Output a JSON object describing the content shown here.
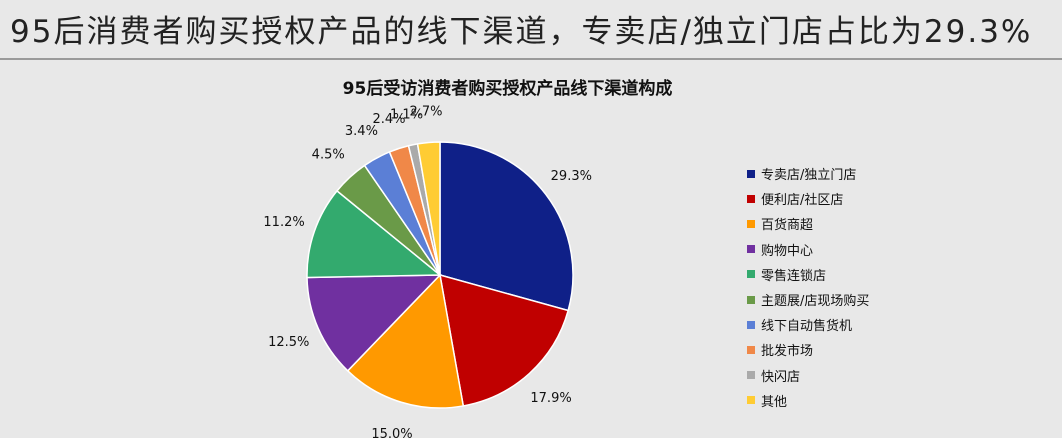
{
  "headline": "95后消费者购买授权产品的线下渠道，专卖店/独立门店占比为29.3%",
  "chart_data": {
    "type": "pie",
    "title": "95后受访消费者购买授权产品线下渠道构成",
    "legend_position": "right",
    "slices": [
      {
        "label": "专卖店/独立门店",
        "value": 29.3,
        "value_label": "29.3%",
        "color": "#0f2088"
      },
      {
        "label": "便利店/社区店",
        "value": 17.9,
        "value_label": "17.9%",
        "color": "#c00000"
      },
      {
        "label": "百货商超",
        "value": 15.0,
        "value_label": "15.0%",
        "color": "#ff9900"
      },
      {
        "label": "购物中心",
        "value": 12.5,
        "value_label": "12.5%",
        "color": "#7030a0"
      },
      {
        "label": "零售连锁店",
        "value": 11.2,
        "value_label": "11.2%",
        "color": "#33aa6e"
      },
      {
        "label": "主题展/店现场购买",
        "value": 4.5,
        "value_label": "4.5%",
        "color": "#6a9a48"
      },
      {
        "label": "线下自动售货机",
        "value": 3.4,
        "value_label": "3.4%",
        "color": "#5b7fd6"
      },
      {
        "label": "批发市场",
        "value": 2.4,
        "value_label": "2.4%",
        "color": "#f08848"
      },
      {
        "label": "快闪店",
        "value": 1.1,
        "value_label": "1.1%",
        "color": "#aaaaaa"
      },
      {
        "label": "其他",
        "value": 2.7,
        "value_label": "2.7%",
        "color": "#ffcc33"
      }
    ]
  }
}
